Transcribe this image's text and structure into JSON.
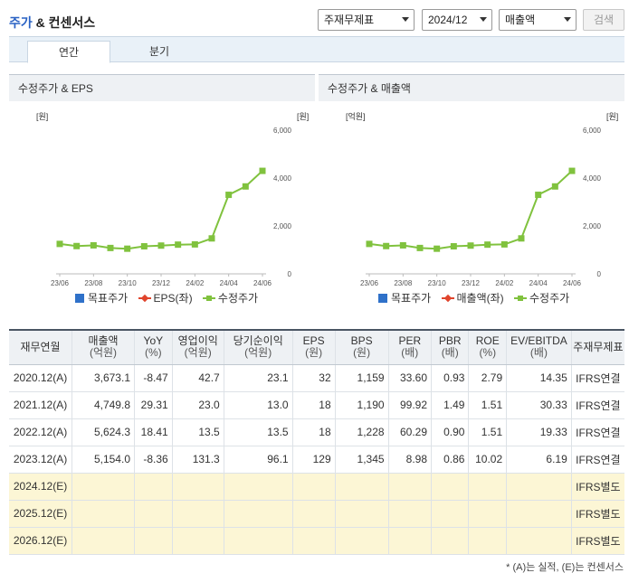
{
  "header": {
    "title_main": "주가",
    "title_rest": "& 컨센서스"
  },
  "filters": {
    "type": "주재무제표",
    "period": "2024/12",
    "metric": "매출액",
    "search_label": "검색"
  },
  "tabs": [
    {
      "label": "연간",
      "active": true
    },
    {
      "label": "분기",
      "active": false
    }
  ],
  "charts": [
    {
      "title": "수정주가 & EPS",
      "left_unit": "[원]",
      "right_unit": "[원]",
      "legend": [
        "목표주가",
        "EPS(좌)",
        "수정주가"
      ]
    },
    {
      "title": "수정주가 & 매출액",
      "left_unit": "[억원]",
      "right_unit": "[원]",
      "legend": [
        "목표주가",
        "매출액(좌)",
        "수정주가"
      ]
    }
  ],
  "chart_data": [
    {
      "type": "line",
      "title": "수정주가 & EPS",
      "x": [
        "23/06",
        "23/07",
        "23/08",
        "23/09",
        "23/10",
        "23/11",
        "23/12",
        "24/01",
        "24/02",
        "24/03",
        "24/04",
        "24/05",
        "24/06"
      ],
      "x_tick_labels": [
        "23/06",
        "23/08",
        "23/10",
        "23/12",
        "24/02",
        "24/04",
        "24/06"
      ],
      "y_right_ticks": [
        "6,000",
        "4,000",
        "2,000",
        "0"
      ],
      "y_right_range": [
        0,
        6000
      ],
      "series": [
        {
          "name": "수정주가",
          "axis": "right",
          "color": "#80c23e",
          "values": [
            1250,
            1160,
            1190,
            1080,
            1050,
            1150,
            1180,
            1220,
            1230,
            1480,
            3300,
            3650,
            4300
          ]
        }
      ],
      "legend_position": "bottom"
    },
    {
      "type": "line",
      "title": "수정주가 & 매출액",
      "x": [
        "23/06",
        "23/07",
        "23/08",
        "23/09",
        "23/10",
        "23/11",
        "23/12",
        "24/01",
        "24/02",
        "24/03",
        "24/04",
        "24/05",
        "24/06"
      ],
      "x_tick_labels": [
        "23/06",
        "23/08",
        "23/10",
        "23/12",
        "24/02",
        "24/04",
        "24/06"
      ],
      "y_right_ticks": [
        "6,000",
        "4,000",
        "2,000",
        "0"
      ],
      "y_right_range": [
        0,
        6000
      ],
      "series": [
        {
          "name": "수정주가",
          "axis": "right",
          "color": "#80c23e",
          "values": [
            1250,
            1160,
            1190,
            1080,
            1050,
            1150,
            1180,
            1220,
            1230,
            1480,
            3300,
            3650,
            4300
          ]
        }
      ],
      "legend_position": "bottom"
    }
  ],
  "table": {
    "headers": [
      {
        "name": "재무연월",
        "unit": ""
      },
      {
        "name": "매출액",
        "unit": "(억원)"
      },
      {
        "name": "YoY",
        "unit": "(%)"
      },
      {
        "name": "영업이익",
        "unit": "(억원)"
      },
      {
        "name": "당기순이익",
        "unit": "(억원)"
      },
      {
        "name": "EPS",
        "unit": "(원)"
      },
      {
        "name": "BPS",
        "unit": "(원)"
      },
      {
        "name": "PER",
        "unit": "(배)"
      },
      {
        "name": "PBR",
        "unit": "(배)"
      },
      {
        "name": "ROE",
        "unit": "(%)"
      },
      {
        "name": "EV/EBITDA",
        "unit": "(배)"
      },
      {
        "name": "주재무제표",
        "unit": ""
      }
    ],
    "rows": [
      {
        "cells": [
          "2020.12(A)",
          "3,673.1",
          "-8.47",
          "42.7",
          "23.1",
          "32",
          "1,159",
          "33.60",
          "0.93",
          "2.79",
          "14.35",
          "IFRS연결"
        ],
        "estimate": false
      },
      {
        "cells": [
          "2021.12(A)",
          "4,749.8",
          "29.31",
          "23.0",
          "13.0",
          "18",
          "1,190",
          "99.92",
          "1.49",
          "1.51",
          "30.33",
          "IFRS연결"
        ],
        "estimate": false
      },
      {
        "cells": [
          "2022.12(A)",
          "5,624.3",
          "18.41",
          "13.5",
          "13.5",
          "18",
          "1,228",
          "60.29",
          "0.90",
          "1.51",
          "19.33",
          "IFRS연결"
        ],
        "estimate": false
      },
      {
        "cells": [
          "2023.12(A)",
          "5,154.0",
          "-8.36",
          "131.3",
          "96.1",
          "129",
          "1,345",
          "8.98",
          "0.86",
          "10.02",
          "6.19",
          "IFRS연결"
        ],
        "estimate": false
      },
      {
        "cells": [
          "2024.12(E)",
          "",
          "",
          "",
          "",
          "",
          "",
          "",
          "",
          "",
          "",
          "IFRS별도"
        ],
        "estimate": true
      },
      {
        "cells": [
          "2025.12(E)",
          "",
          "",
          "",
          "",
          "",
          "",
          "",
          "",
          "",
          "",
          "IFRS별도"
        ],
        "estimate": true
      },
      {
        "cells": [
          "2026.12(E)",
          "",
          "",
          "",
          "",
          "",
          "",
          "",
          "",
          "",
          "",
          "IFRS별도"
        ],
        "estimate": true
      }
    ]
  },
  "footnote": "* (A)는 실적, (E)는 컨센서스",
  "colors": {
    "price_line": "#80c23e",
    "eps_line": "#e0442c",
    "target": "#2f71c9",
    "estimate_row": "#fcf6d5"
  }
}
